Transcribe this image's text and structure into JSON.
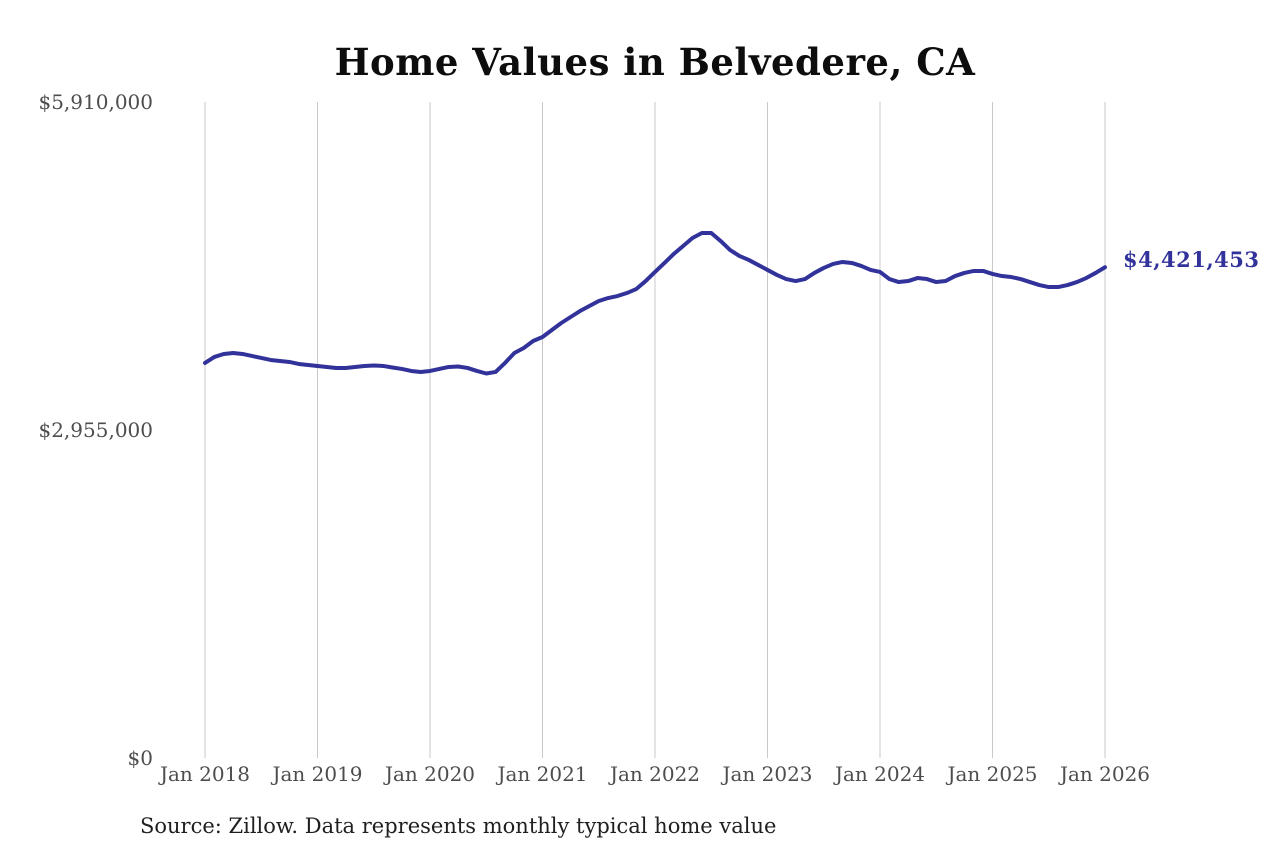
{
  "source_note": "Source: Zillow. Data represents monthly typical home value",
  "colors": {
    "line": "#32329b",
    "end_label": "#32329b",
    "grid": "#c9c9c9",
    "tick_text": "#4d4d4d"
  },
  "chart_data": {
    "type": "line",
    "title": "Home Values in Belvedere, CA",
    "frequency": "monthly",
    "x_start": "Jan 2018",
    "x_end": "Jan 2026",
    "x_tick_labels": [
      "Jan 2018",
      "Jan 2019",
      "Jan 2020",
      "Jan 2021",
      "Jan 2022",
      "Jan 2023",
      "Jan 2024",
      "Jan 2025",
      "Jan 2026"
    ],
    "y_ticks": [
      {
        "label": "$0",
        "value": 0
      },
      {
        "label": "$2,955,000",
        "value": 2955000
      },
      {
        "label": "$5,910,000",
        "value": 5910000
      }
    ],
    "ylim": [
      0,
      5910000
    ],
    "grid": "vertical-only",
    "legend": "none",
    "end_label": "$4,421,453",
    "end_value": 4421453,
    "series": [
      {
        "name": "Typical home value",
        "values": [
          3559000,
          3613000,
          3640000,
          3649000,
          3640000,
          3622000,
          3604000,
          3586000,
          3577000,
          3568000,
          3550000,
          3541000,
          3532000,
          3523000,
          3514000,
          3514000,
          3523000,
          3532000,
          3536000,
          3532000,
          3518000,
          3505000,
          3487000,
          3478000,
          3487000,
          3505000,
          3523000,
          3527000,
          3514000,
          3487000,
          3464000,
          3478000,
          3559000,
          3649000,
          3694000,
          3757000,
          3793000,
          3856000,
          3919000,
          3973000,
          4027000,
          4072000,
          4117000,
          4144000,
          4162000,
          4189000,
          4225000,
          4297000,
          4379000,
          4459000,
          4541000,
          4613000,
          4685000,
          4730000,
          4730000,
          4658000,
          4577000,
          4523000,
          4487000,
          4442000,
          4397000,
          4352000,
          4315000,
          4297000,
          4315000,
          4370000,
          4415000,
          4451000,
          4469000,
          4460000,
          4433000,
          4397000,
          4379000,
          4315000,
          4288000,
          4297000,
          4324000,
          4315000,
          4288000,
          4297000,
          4342000,
          4370000,
          4388000,
          4388000,
          4361000,
          4342000,
          4333000,
          4315000,
          4288000,
          4261000,
          4243000,
          4243000,
          4261000,
          4288000,
          4324000,
          4370000,
          4421453
        ]
      }
    ]
  }
}
